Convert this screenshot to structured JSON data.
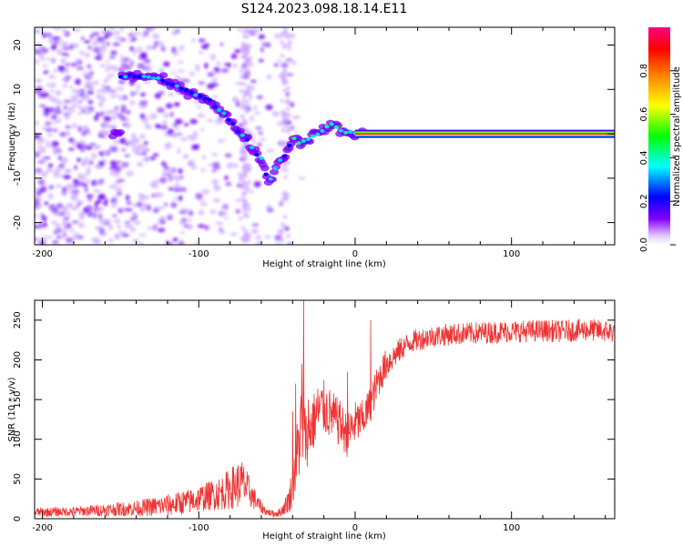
{
  "figure_title": "S124.2023.098.18.14.E11",
  "chart_data": [
    {
      "type": "heatmap",
      "title": "",
      "xlabel": "Height of straight line (km)",
      "ylabel": "Frequency (Hz)",
      "xlim": [
        -205,
        166
      ],
      "ylim": [
        -25,
        24
      ],
      "xticks": [
        -200,
        -100,
        0,
        100
      ],
      "yticks": [
        -20,
        -10,
        0,
        10,
        20
      ],
      "colorbar": {
        "label": "Normalized spectral amplitude",
        "range": [
          0,
          1
        ],
        "ticks": [
          "0.0",
          "0.2",
          "0.4",
          "0.6",
          "0.8"
        ],
        "colors": [
          "#ffffff",
          "#8000ff",
          "#0000ff",
          "#00ffff",
          "#00ff00",
          "#ffff00",
          "#ff8000",
          "#ff0000",
          "#ff0080"
        ]
      },
      "ridge": {
        "description_points_km_hz": [
          [
            -150,
            13
          ],
          [
            -130,
            13
          ],
          [
            -110,
            10
          ],
          [
            -95,
            8
          ],
          [
            -80,
            3
          ],
          [
            -70,
            -1
          ],
          [
            -60,
            -6
          ],
          [
            -55,
            -11
          ],
          [
            -50,
            -7
          ],
          [
            -45,
            -5
          ],
          [
            -40,
            -1
          ],
          [
            -35,
            -2
          ],
          [
            -25,
            0
          ],
          [
            -15,
            2
          ],
          [
            -5,
            0
          ],
          [
            5,
            0
          ],
          [
            165,
            0
          ]
        ],
        "peak_amplitude_after_km": 0,
        "peak_frequency_hz": 0
      }
    },
    {
      "type": "line",
      "title": "",
      "xlabel": "Height of straight line (km)",
      "ylabel": "SNR (10 * v/v)",
      "xlim": [
        -205,
        166
      ],
      "ylim": [
        0,
        275
      ],
      "xticks": [
        -200,
        -100,
        0,
        100
      ],
      "yticks": [
        0,
        50,
        100,
        150,
        200,
        250
      ],
      "color": "#ee3333",
      "series": [
        {
          "name": "",
          "x": [
            -205,
            -180,
            -160,
            -140,
            -120,
            -105,
            -95,
            -85,
            -78,
            -72,
            -68,
            -62,
            -57,
            -52,
            -48,
            -45,
            -42,
            -40,
            -38,
            -36,
            -34,
            -32,
            -30,
            -27,
            -24,
            -20,
            -15,
            -10,
            -5,
            0,
            5,
            10,
            15,
            20,
            25,
            30,
            35,
            40,
            45,
            50,
            60,
            70,
            80,
            90,
            100,
            110,
            120,
            130,
            140,
            150,
            160,
            166
          ],
          "values": [
            8,
            9,
            11,
            13,
            17,
            22,
            28,
            33,
            40,
            45,
            35,
            18,
            9,
            6,
            8,
            15,
            25,
            45,
            70,
            95,
            120,
            95,
            110,
            120,
            135,
            140,
            130,
            120,
            105,
            120,
            125,
            145,
            175,
            195,
            205,
            215,
            222,
            225,
            228,
            230,
            232,
            233,
            234,
            235,
            236,
            236,
            237,
            236,
            237,
            238,
            236,
            235
          ],
          "spikes": [
            [
              -40,
              135
            ],
            [
              -38,
              170
            ],
            [
              -34,
              195
            ],
            [
              -33,
              275
            ],
            [
              -32,
              140
            ],
            [
              -30,
              150
            ],
            [
              -10,
              130
            ],
            [
              -5,
              185
            ],
            [
              10,
              250
            ]
          ],
          "noise_amplitude": [
            6,
            6,
            8,
            10,
            14,
            16,
            18,
            22,
            28,
            30,
            20,
            10,
            5,
            4,
            6,
            10,
            18,
            30,
            40,
            50,
            60,
            40,
            40,
            38,
            35,
            35,
            32,
            30,
            28,
            28,
            25,
            24,
            22,
            20,
            16,
            15,
            14,
            14,
            14,
            14,
            14,
            14,
            14,
            14,
            14,
            14,
            14,
            14,
            14,
            14,
            14,
            14
          ]
        }
      ]
    }
  ]
}
